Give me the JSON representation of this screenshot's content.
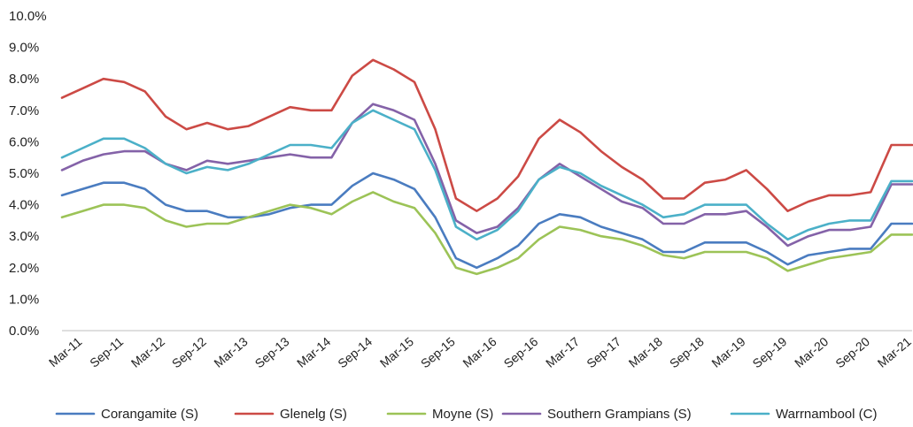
{
  "chart_data": {
    "type": "line",
    "ylim": [
      0,
      10
    ],
    "y_ticks": [
      "0.0%",
      "1.0%",
      "2.0%",
      "3.0%",
      "4.0%",
      "5.0%",
      "6.0%",
      "7.0%",
      "8.0%",
      "9.0%",
      "10.0%"
    ],
    "x": [
      "Dec-10",
      "Mar-11",
      "Jun-11",
      "Sep-11",
      "Dec-11",
      "Mar-12",
      "Jun-12",
      "Sep-12",
      "Dec-12",
      "Mar-13",
      "Jun-13",
      "Sep-13",
      "Dec-13",
      "Mar-14",
      "Jun-14",
      "Sep-14",
      "Dec-14",
      "Mar-15",
      "Jun-15",
      "Sep-15",
      "Dec-15",
      "Mar-16",
      "Jun-16",
      "Sep-16",
      "Dec-16",
      "Mar-17",
      "Jun-17",
      "Sep-17",
      "Dec-17",
      "Mar-18",
      "Jun-18",
      "Sep-18",
      "Dec-18",
      "Mar-19",
      "Jun-19",
      "Sep-19",
      "Dec-19",
      "Mar-20",
      "Jun-20",
      "Sep-20",
      "Dec-20",
      "Mar-21"
    ],
    "x_tick_labels": [
      "Mar-11",
      "Sep-11",
      "Mar-12",
      "Sep-12",
      "Mar-13",
      "Sep-13",
      "Mar-14",
      "Sep-14",
      "Mar-15",
      "Sep-15",
      "Mar-16",
      "Sep-16",
      "Mar-17",
      "Sep-17",
      "Mar-18",
      "Sep-18",
      "Mar-19",
      "Sep-19",
      "Mar-20",
      "Sep-20",
      "Mar-21"
    ],
    "grid": false,
    "legend_position": "bottom",
    "series": [
      {
        "name": "Corangamite (S)",
        "color": "#4a7cc0",
        "values": [
          4.3,
          4.5,
          4.7,
          4.7,
          4.5,
          4.0,
          3.8,
          3.8,
          3.6,
          3.6,
          3.7,
          3.9,
          4.0,
          4.0,
          4.6,
          5.0,
          4.8,
          4.5,
          3.6,
          2.3,
          2.0,
          2.3,
          2.7,
          3.4,
          3.7,
          3.6,
          3.3,
          3.1,
          2.9,
          2.5,
          2.5,
          2.8,
          2.8,
          2.8,
          2.5,
          2.1,
          2.4,
          2.5,
          2.6,
          2.6,
          3.4,
          3.4
        ]
      },
      {
        "name": "Glenelg (S)",
        "color": "#cc4a45",
        "values": [
          7.4,
          7.7,
          8.0,
          7.9,
          7.6,
          6.8,
          6.4,
          6.6,
          6.4,
          6.5,
          6.8,
          7.1,
          7.0,
          7.0,
          8.1,
          8.6,
          8.3,
          7.9,
          6.4,
          4.2,
          3.8,
          4.2,
          4.9,
          6.1,
          6.7,
          6.3,
          5.7,
          5.2,
          4.8,
          4.2,
          4.2,
          4.7,
          4.8,
          5.1,
          4.5,
          3.8,
          4.1,
          4.3,
          4.3,
          4.4,
          5.9,
          5.9
        ]
      },
      {
        "name": "Moyne (S)",
        "color": "#9cc357",
        "values": [
          3.6,
          3.8,
          4.0,
          4.0,
          3.9,
          3.5,
          3.3,
          3.4,
          3.4,
          3.6,
          3.8,
          4.0,
          3.9,
          3.7,
          4.1,
          4.4,
          4.1,
          3.9,
          3.1,
          2.0,
          1.8,
          2.0,
          2.3,
          2.9,
          3.3,
          3.2,
          3.0,
          2.9,
          2.7,
          2.4,
          2.3,
          2.5,
          2.5,
          2.5,
          2.3,
          1.9,
          2.1,
          2.3,
          2.4,
          2.5,
          3.05,
          3.05
        ]
      },
      {
        "name": "Southern Grampians (S)",
        "color": "#8462a8",
        "values": [
          5.1,
          5.4,
          5.6,
          5.7,
          5.7,
          5.3,
          5.1,
          5.4,
          5.3,
          5.4,
          5.5,
          5.6,
          5.5,
          5.5,
          6.6,
          7.2,
          7.0,
          6.7,
          5.3,
          3.5,
          3.1,
          3.3,
          3.9,
          4.8,
          5.3,
          4.9,
          4.5,
          4.1,
          3.9,
          3.4,
          3.4,
          3.7,
          3.7,
          3.8,
          3.3,
          2.7,
          3.0,
          3.2,
          3.2,
          3.3,
          4.65,
          4.65
        ]
      },
      {
        "name": "Warrnambool (C)",
        "color": "#4bb0c8",
        "values": [
          5.5,
          5.8,
          6.1,
          6.1,
          5.8,
          5.3,
          5.0,
          5.2,
          5.1,
          5.3,
          5.6,
          5.9,
          5.9,
          5.8,
          6.6,
          7.0,
          6.7,
          6.4,
          5.1,
          3.3,
          2.9,
          3.2,
          3.8,
          4.8,
          5.2,
          5.0,
          4.6,
          4.3,
          4.0,
          3.6,
          3.7,
          4.0,
          4.0,
          4.0,
          3.4,
          2.9,
          3.2,
          3.4,
          3.5,
          3.5,
          4.75,
          4.75
        ]
      }
    ]
  }
}
